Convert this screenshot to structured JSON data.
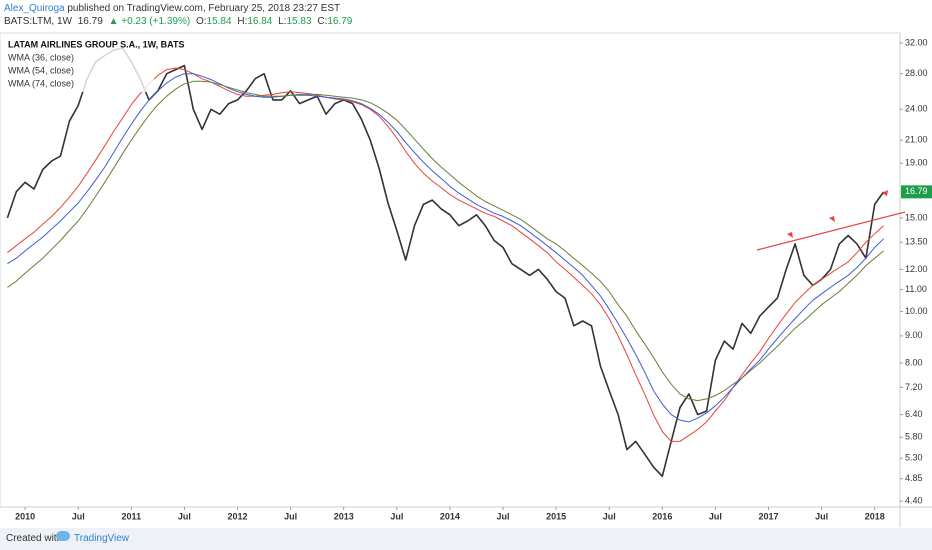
{
  "header": {
    "author": "Alex_Quiroga",
    "published": "published on TradingView.com, February 25, 2018 23:27 EST",
    "symbol": "BATS:LTM, 1W",
    "last": 16.79,
    "change": "▲ +0.23 (+1.39%)",
    "open_label": "O:",
    "open": 15.84,
    "high_label": "H:",
    "high": 16.84,
    "low_label": "L:",
    "low": 15.83,
    "close_label": "C:",
    "close": 16.79
  },
  "footer": {
    "created": "Created with",
    "brand": "TradingView"
  },
  "chart_data": {
    "type": "line",
    "log_scale": true,
    "grid": false,
    "legend": "top-left",
    "categories": [
      null,
      null,
      "2010",
      null,
      null,
      null,
      null,
      null,
      "Jul",
      null,
      null,
      null,
      null,
      null,
      "2011",
      null,
      null,
      null,
      null,
      null,
      "Jul",
      null,
      null,
      null,
      null,
      null,
      "2012",
      null,
      null,
      null,
      null,
      null,
      "Jul",
      null,
      null,
      null,
      null,
      null,
      "2013",
      null,
      null,
      null,
      null,
      null,
      "Jul",
      null,
      null,
      null,
      null,
      null,
      "2014",
      null,
      null,
      null,
      null,
      null,
      "Jul",
      null,
      null,
      null,
      null,
      null,
      "2015",
      null,
      null,
      null,
      null,
      null,
      "Jul",
      null,
      null,
      null,
      null,
      null,
      "2016",
      null,
      null,
      null,
      null,
      null,
      "Jul",
      null,
      null,
      null,
      null,
      null,
      "2017",
      null,
      null,
      null,
      null,
      null,
      "Jul",
      null,
      null,
      null,
      null,
      null,
      "2018",
      null
    ],
    "ylim": [
      4.29,
      33.4
    ],
    "yticks": [
      {
        "value": 4.4,
        "label": "4.40"
      },
      {
        "value": 4.85,
        "label": "4.85"
      },
      {
        "value": 5.3,
        "label": "5.30"
      },
      {
        "value": 5.8,
        "label": "5.80"
      },
      {
        "value": 6.4,
        "label": "6.40"
      },
      {
        "value": 7.2,
        "label": "7.20"
      },
      {
        "value": 8,
        "label": "8.00"
      },
      {
        "value": 9,
        "label": "9.00"
      },
      {
        "value": 10,
        "label": "10.00"
      },
      {
        "value": 11,
        "label": "11.00"
      },
      {
        "value": 12,
        "label": "12.00"
      },
      {
        "value": 13.5,
        "label": "13.50"
      },
      {
        "value": 15,
        "label": "15.00"
      },
      {
        "value": 19,
        "label": "19.00"
      },
      {
        "value": 21,
        "label": "21.00"
      },
      {
        "value": 24,
        "label": "24.00"
      },
      {
        "value": 28,
        "label": "28.00"
      },
      {
        "value": 32,
        "label": "32.00"
      }
    ],
    "series": [
      {
        "name": "LATAM AIRLINES GROUP S.A., 1W, BATS",
        "color": "#333333",
        "values": [
          15.0,
          16.8,
          17.5,
          17.0,
          18.5,
          19.2,
          19.6,
          22.8,
          24.4,
          27.4,
          29.5,
          30.3,
          31.0,
          31.3,
          29.5,
          27.4,
          25.0,
          26.0,
          28.0,
          28.5,
          29.0,
          24.0,
          22.0,
          24.0,
          23.5,
          24.6,
          25.0,
          26.0,
          27.4,
          28.0,
          25.0,
          25.0,
          26.0,
          24.6,
          25.0,
          25.4,
          23.5,
          24.6,
          25.0,
          24.6,
          23.0,
          21.0,
          18.6,
          16.0,
          14.2,
          12.5,
          14.5,
          15.9,
          16.2,
          15.6,
          15.2,
          14.5,
          14.8,
          15.2,
          14.5,
          13.6,
          13.2,
          12.3,
          12.0,
          11.7,
          12.0,
          11.5,
          10.9,
          10.6,
          9.4,
          9.6,
          9.4,
          7.9,
          7.1,
          6.4,
          5.5,
          5.7,
          5.4,
          5.1,
          4.9,
          5.7,
          6.6,
          7.0,
          6.4,
          6.5,
          8.1,
          8.8,
          8.5,
          9.5,
          9.1,
          9.8,
          10.2,
          10.6,
          12.0,
          13.4,
          11.7,
          11.2,
          11.5,
          12.0,
          13.4,
          13.9,
          13.4,
          12.6,
          15.9,
          16.79
        ]
      },
      {
        "name": "WMA (36, close)",
        "color": "#e8443a",
        "values": [
          12.9,
          13.3,
          13.7,
          14.1,
          14.6,
          15.1,
          15.7,
          16.4,
          17.2,
          18.2,
          19.3,
          20.5,
          21.8,
          23.1,
          24.5,
          25.7,
          26.8,
          27.8,
          28.5,
          28.7,
          28.5,
          28.0,
          27.4,
          27.0,
          26.5,
          26.0,
          25.6,
          25.4,
          25.4,
          25.5,
          25.6,
          25.8,
          25.9,
          25.8,
          25.7,
          25.5,
          25.3,
          25.1,
          25.0,
          24.8,
          24.5,
          24.0,
          23.3,
          22.3,
          21.2,
          20.0,
          19.0,
          18.2,
          17.6,
          17.1,
          16.6,
          16.2,
          15.9,
          15.6,
          15.3,
          15.1,
          14.8,
          14.5,
          14.1,
          13.7,
          13.3,
          12.9,
          12.4,
          12.0,
          11.6,
          11.2,
          10.8,
          10.3,
          9.7,
          9.0,
          8.3,
          7.6,
          7.0,
          6.4,
          5.95,
          5.7,
          5.7,
          5.85,
          6.0,
          6.2,
          6.5,
          6.8,
          7.2,
          7.6,
          8.0,
          8.4,
          8.9,
          9.4,
          9.9,
          10.4,
          10.8,
          11.2,
          11.5,
          11.8,
          12.1,
          12.4,
          12.9,
          13.5,
          14.0,
          14.5
        ]
      },
      {
        "name": "WMA (54, close)",
        "color": "#3a5ed8",
        "values": [
          12.3,
          12.6,
          13.0,
          13.4,
          13.8,
          14.3,
          14.8,
          15.4,
          16.0,
          16.8,
          17.7,
          18.7,
          19.9,
          21.2,
          22.5,
          23.8,
          25.0,
          26.0,
          26.9,
          27.6,
          28.0,
          28.0,
          27.7,
          27.3,
          26.8,
          26.3,
          25.9,
          25.6,
          25.4,
          25.3,
          25.3,
          25.4,
          25.5,
          25.5,
          25.5,
          25.4,
          25.3,
          25.2,
          25.1,
          24.9,
          24.6,
          24.1,
          23.5,
          22.7,
          21.8,
          20.8,
          19.9,
          19.1,
          18.4,
          17.8,
          17.2,
          16.7,
          16.3,
          15.9,
          15.6,
          15.3,
          15.1,
          14.8,
          14.5,
          14.1,
          13.7,
          13.3,
          12.9,
          12.5,
          12.1,
          11.7,
          11.2,
          10.7,
          10.1,
          9.5,
          8.9,
          8.3,
          7.7,
          7.1,
          6.7,
          6.4,
          6.25,
          6.2,
          6.3,
          6.45,
          6.65,
          6.9,
          7.2,
          7.5,
          7.8,
          8.1,
          8.5,
          8.9,
          9.3,
          9.7,
          10.1,
          10.5,
          10.8,
          11.1,
          11.4,
          11.7,
          12.1,
          12.6,
          13.2,
          13.7
        ]
      },
      {
        "name": "WMA (74, close)",
        "color": "#6b7d3a",
        "values": [
          11.1,
          11.4,
          11.8,
          12.2,
          12.6,
          13.1,
          13.6,
          14.2,
          14.8,
          15.6,
          16.5,
          17.5,
          18.6,
          19.8,
          21.0,
          22.2,
          23.4,
          24.5,
          25.4,
          26.2,
          26.8,
          27.1,
          27.1,
          27.0,
          26.7,
          26.4,
          26.1,
          25.8,
          25.6,
          25.4,
          25.4,
          25.4,
          25.5,
          25.6,
          25.6,
          25.6,
          25.5,
          25.4,
          25.3,
          25.2,
          25.0,
          24.7,
          24.2,
          23.6,
          22.9,
          22.0,
          21.1,
          20.2,
          19.4,
          18.7,
          18.1,
          17.5,
          17.0,
          16.5,
          16.1,
          15.8,
          15.5,
          15.2,
          14.9,
          14.5,
          14.1,
          13.7,
          13.4,
          13.0,
          12.6,
          12.2,
          11.8,
          11.4,
          10.9,
          10.3,
          9.8,
          9.2,
          8.7,
          8.2,
          7.7,
          7.3,
          7.0,
          6.85,
          6.8,
          6.85,
          6.95,
          7.1,
          7.3,
          7.5,
          7.75,
          8.0,
          8.3,
          8.6,
          8.95,
          9.3,
          9.6,
          9.95,
          10.3,
          10.6,
          10.9,
          11.3,
          11.7,
          12.2,
          12.6,
          13.0
        ]
      }
    ]
  }
}
